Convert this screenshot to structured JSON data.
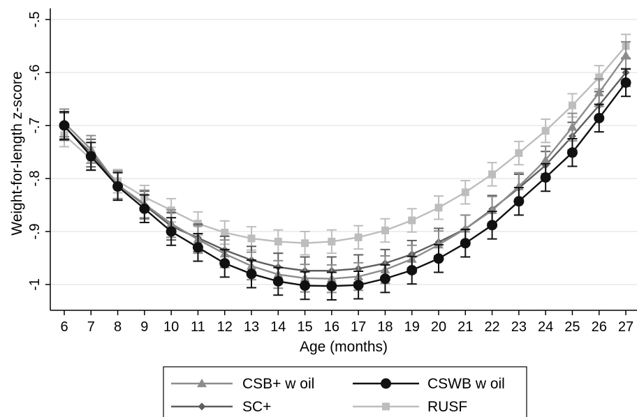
{
  "chart_data": {
    "type": "line",
    "title": "",
    "xlabel": "Age (months)",
    "ylabel": "Weight-for-length z-score",
    "xlim": [
      6,
      27
    ],
    "ylim": [
      -1.05,
      -0.5
    ],
    "x": [
      6,
      7,
      8,
      9,
      10,
      11,
      12,
      13,
      14,
      15,
      16,
      17,
      18,
      19,
      20,
      21,
      22,
      23,
      24,
      25,
      26,
      27
    ],
    "x_tick_labels": [
      "6",
      "7",
      "8",
      "9",
      "10",
      "11",
      "12",
      "13",
      "14",
      "15",
      "16",
      "17",
      "18",
      "19",
      "20",
      "21",
      "22",
      "23",
      "24",
      "25",
      "26",
      "27"
    ],
    "y_ticks": [
      -1,
      -0.9,
      -0.8,
      -0.7,
      -0.6,
      -0.5
    ],
    "y_tick_labels": [
      "-1",
      "-.9",
      "-.8",
      "-.7",
      "-.6",
      "-.5"
    ],
    "grid": "horizontal",
    "legend_position": "bottom",
    "series": [
      {
        "name": "CSB+ w oil",
        "color": "#8c8c8c",
        "marker": "triangle",
        "values": [
          -0.695,
          -0.745,
          -0.812,
          -0.848,
          -0.885,
          -0.915,
          -0.942,
          -0.965,
          -0.981,
          -0.988,
          -0.989,
          -0.985,
          -0.972,
          -0.952,
          -0.925,
          -0.895,
          -0.86,
          -0.815,
          -0.765,
          -0.703,
          -0.638,
          -0.568
        ],
        "error": 0.026
      },
      {
        "name": "CSWB w oil",
        "color": "#111111",
        "marker": "circle",
        "values": [
          -0.7,
          -0.758,
          -0.815,
          -0.857,
          -0.9,
          -0.93,
          -0.96,
          -0.98,
          -0.994,
          -1.002,
          -1.003,
          -1.001,
          -0.989,
          -0.973,
          -0.951,
          -0.922,
          -0.888,
          -0.843,
          -0.798,
          -0.751,
          -0.686,
          -0.619
        ],
        "error": 0.026
      },
      {
        "name": "SC+",
        "color": "#5e5e5e",
        "marker": "diamond",
        "values": [
          -0.702,
          -0.752,
          -0.812,
          -0.85,
          -0.89,
          -0.912,
          -0.935,
          -0.954,
          -0.967,
          -0.974,
          -0.974,
          -0.97,
          -0.96,
          -0.943,
          -0.92,
          -0.895,
          -0.858,
          -0.818,
          -0.775,
          -0.72,
          -0.662,
          -0.6
        ],
        "error": 0.026
      },
      {
        "name": "RUSF",
        "color": "#bdbdbd",
        "marker": "square",
        "values": [
          -0.718,
          -0.763,
          -0.805,
          -0.835,
          -0.86,
          -0.885,
          -0.902,
          -0.913,
          -0.919,
          -0.922,
          -0.919,
          -0.911,
          -0.898,
          -0.879,
          -0.855,
          -0.826,
          -0.792,
          -0.752,
          -0.71,
          -0.662,
          -0.609,
          -0.55
        ],
        "error": 0.022
      }
    ]
  }
}
